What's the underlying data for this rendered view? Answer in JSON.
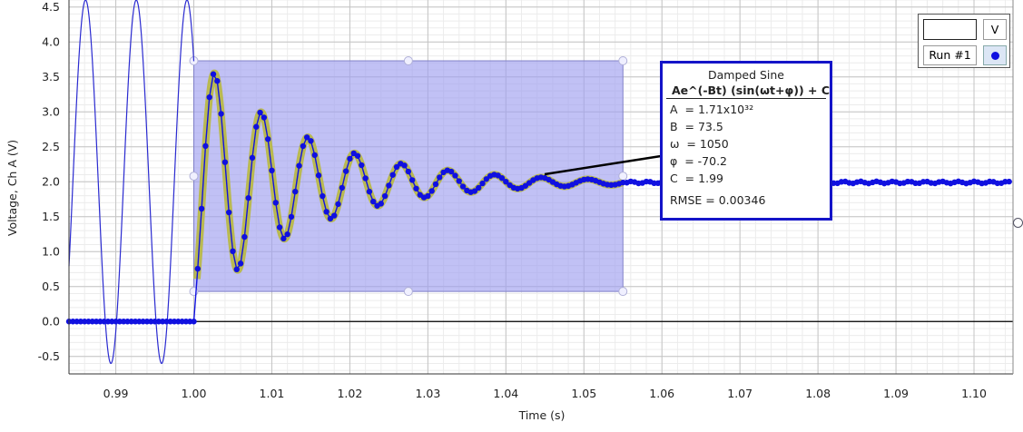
{
  "chart_data": {
    "type": "line",
    "xlabel": "Time (s)",
    "ylabel": "Voltage, Ch A (V)",
    "xlim": [
      0.984,
      1.105
    ],
    "ylim": [
      -0.75,
      4.6
    ],
    "x_ticks": [
      "0.99",
      "1.00",
      "1.01",
      "1.02",
      "1.03",
      "1.04",
      "1.05",
      "1.06",
      "1.07",
      "1.08",
      "1.09",
      "1.10"
    ],
    "y_ticks": [
      "-0.5",
      "0.0",
      "0.5",
      "1.0",
      "1.5",
      "2.0",
      "2.5",
      "3.0",
      "3.5",
      "4.0",
      "4.5"
    ],
    "grid": true,
    "series": [
      {
        "name": "Run #1",
        "color": "#1010e0",
        "sampling": "points every ~0.0005 s; baseline ~0.0 V before 1.000 s, damped sine to ~2.0 V after",
        "peaks": [
          {
            "x": 1.0027,
            "y": 3.55
          },
          {
            "x": 1.0086,
            "y": 2.99
          },
          {
            "x": 1.0146,
            "y": 2.64
          },
          {
            "x": 1.0206,
            "y": 2.4
          },
          {
            "x": 1.0266,
            "y": 2.26
          },
          {
            "x": 1.0326,
            "y": 2.15
          },
          {
            "x": 1.0386,
            "y": 2.1
          },
          {
            "x": 1.0446,
            "y": 2.05
          },
          {
            "x": 1.0506,
            "y": 2.03
          }
        ],
        "troughs": [
          {
            "x": 1.0057,
            "y": 0.74
          },
          {
            "x": 1.0117,
            "y": 1.18
          },
          {
            "x": 1.0177,
            "y": 1.47
          },
          {
            "x": 1.0237,
            "y": 1.7
          },
          {
            "x": 1.0297,
            "y": 1.82
          },
          {
            "x": 1.0357,
            "y": 1.88
          },
          {
            "x": 1.0417,
            "y": 1.93
          },
          {
            "x": 1.0477,
            "y": 1.96
          }
        ]
      },
      {
        "name": "fit",
        "color": "#b8b840"
      }
    ],
    "selection": {
      "x": [
        1.0,
        1.055
      ],
      "y": [
        0.43,
        3.73
      ],
      "color": "#a0a0f0"
    },
    "preview_wave": {
      "color": "#2a2ad0",
      "period": 0.0065,
      "x_range": [
        0.984,
        1.0
      ]
    }
  },
  "fit": {
    "title": "Damped Sine",
    "equation": "Ae^(-Bt) (sin(ωt+φ)) + C",
    "params": [
      {
        "label": "A",
        "value": "1.71x10³²"
      },
      {
        "label": "B",
        "value": "73.5"
      },
      {
        "label": "ω",
        "value": "1050"
      },
      {
        "label": "φ",
        "value": "-70.2"
      },
      {
        "label": "C",
        "value": "1.99"
      }
    ],
    "rmse": "RMSE = 0.00346"
  },
  "legend": {
    "unit": "V",
    "run": "Run #1",
    "dot_color": "#1010e0"
  }
}
